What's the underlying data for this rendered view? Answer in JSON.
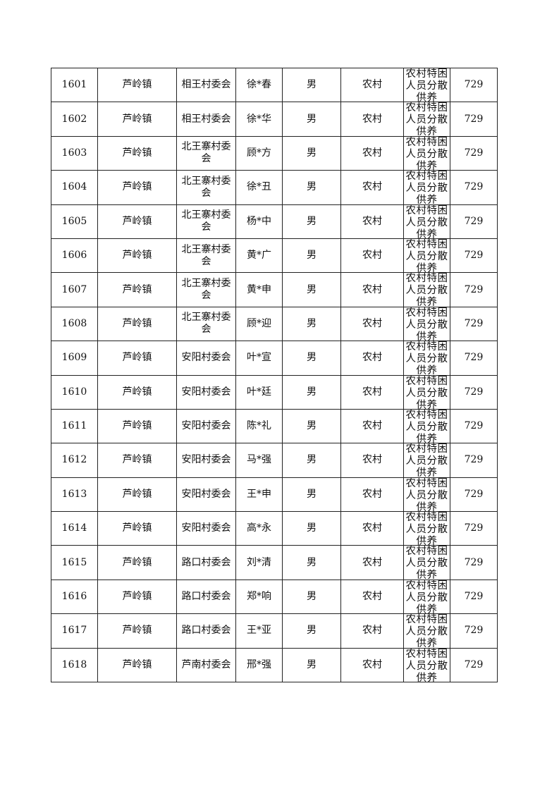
{
  "table": {
    "rows": [
      [
        "1601",
        "芦岭镇",
        "相王村委会",
        "徐*春",
        "男",
        "农村",
        "农村特困人员分散供养",
        "729"
      ],
      [
        "1602",
        "芦岭镇",
        "相王村委会",
        "徐*华",
        "男",
        "农村",
        "农村特困人员分散供养",
        "729"
      ],
      [
        "1603",
        "芦岭镇",
        "北王寨村委会",
        "顾*方",
        "男",
        "农村",
        "农村特困人员分散供养",
        "729"
      ],
      [
        "1604",
        "芦岭镇",
        "北王寨村委会",
        "徐*丑",
        "男",
        "农村",
        "农村特困人员分散供养",
        "729"
      ],
      [
        "1605",
        "芦岭镇",
        "北王寨村委会",
        "杨*中",
        "男",
        "农村",
        "农村特困人员分散供养",
        "729"
      ],
      [
        "1606",
        "芦岭镇",
        "北王寨村委会",
        "黄*广",
        "男",
        "农村",
        "农村特困人员分散供养",
        "729"
      ],
      [
        "1607",
        "芦岭镇",
        "北王寨村委会",
        "黄*申",
        "男",
        "农村",
        "农村特困人员分散供养",
        "729"
      ],
      [
        "1608",
        "芦岭镇",
        "北王寨村委会",
        "顾*迎",
        "男",
        "农村",
        "农村特困人员分散供养",
        "729"
      ],
      [
        "1609",
        "芦岭镇",
        "安阳村委会",
        "叶*宣",
        "男",
        "农村",
        "农村特困人员分散供养",
        "729"
      ],
      [
        "1610",
        "芦岭镇",
        "安阳村委会",
        "叶*廷",
        "男",
        "农村",
        "农村特困人员分散供养",
        "729"
      ],
      [
        "1611",
        "芦岭镇",
        "安阳村委会",
        "陈*礼",
        "男",
        "农村",
        "农村特困人员分散供养",
        "729"
      ],
      [
        "1612",
        "芦岭镇",
        "安阳村委会",
        "马*强",
        "男",
        "农村",
        "农村特困人员分散供养",
        "729"
      ],
      [
        "1613",
        "芦岭镇",
        "安阳村委会",
        "王*申",
        "男",
        "农村",
        "农村特困人员分散供养",
        "729"
      ],
      [
        "1614",
        "芦岭镇",
        "安阳村委会",
        "高*永",
        "男",
        "农村",
        "农村特困人员分散供养",
        "729"
      ],
      [
        "1615",
        "芦岭镇",
        "路口村委会",
        "刘*清",
        "男",
        "农村",
        "农村特困人员分散供养",
        "729"
      ],
      [
        "1616",
        "芦岭镇",
        "路口村委会",
        "郑*响",
        "男",
        "农村",
        "农村特困人员分散供养",
        "729"
      ],
      [
        "1617",
        "芦岭镇",
        "路口村委会",
        "王*亚",
        "男",
        "农村",
        "农村特困人员分散供养",
        "729"
      ],
      [
        "1618",
        "芦岭镇",
        "芦南村委会",
        "邢*强",
        "男",
        "农村",
        "农村特困人员分散供养",
        "729"
      ]
    ]
  }
}
